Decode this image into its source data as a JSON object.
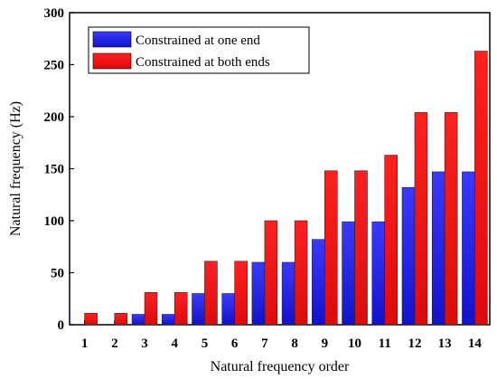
{
  "chart_data": {
    "type": "bar",
    "title": "",
    "xlabel": "Natural frequency order",
    "ylabel": "Natural frequency (Hz)",
    "ylim": [
      0,
      300
    ],
    "yticks": [
      0,
      50,
      100,
      150,
      200,
      250,
      300
    ],
    "categories": [
      "1",
      "2",
      "3",
      "4",
      "5",
      "6",
      "7",
      "8",
      "9",
      "10",
      "11",
      "12",
      "13",
      "14"
    ],
    "legend_position": "top-left",
    "grid": false,
    "series": [
      {
        "name": "Constrained at one end",
        "color": "#1515e6",
        "values": [
          0,
          0,
          10,
          10,
          30,
          30,
          60,
          60,
          82,
          99,
          99,
          132,
          147,
          147
        ]
      },
      {
        "name": "Constrained at both ends",
        "color": "#ee1111",
        "values": [
          11,
          11,
          31,
          31,
          61,
          61,
          100,
          100,
          148,
          148,
          163,
          204,
          204,
          263
        ]
      }
    ]
  }
}
